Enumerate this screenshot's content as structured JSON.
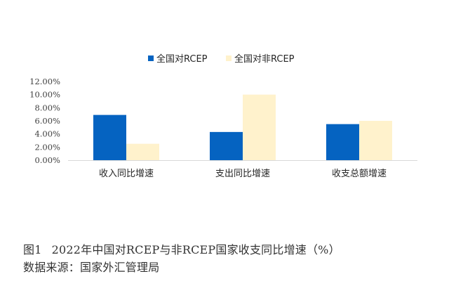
{
  "chart_data": {
    "type": "bar",
    "categories": [
      "收入同比增速",
      "支出同比增速",
      "收支总额增速"
    ],
    "series": [
      {
        "name": "全国对RCEP",
        "values": [
          6.9,
          4.3,
          5.5
        ],
        "color": "#0563C1"
      },
      {
        "name": "全国对非RCEP",
        "values": [
          2.5,
          10.0,
          6.0
        ],
        "color": "#FFF2CC"
      }
    ],
    "ylim": [
      0,
      12
    ],
    "yticks": [
      0,
      2,
      4,
      6,
      8,
      10,
      12
    ],
    "ytick_labels": [
      "0.00%",
      "2.00%",
      "4.00%",
      "6.00%",
      "8.00%",
      "10.00%",
      "12.00%"
    ],
    "legend_position": "top",
    "grid": false
  },
  "caption": {
    "figure_label": "图1",
    "title": "2022年中国对RCEP与非RCEP国家收支同比增速（%）",
    "source": "数据来源：国家外汇管理局"
  }
}
